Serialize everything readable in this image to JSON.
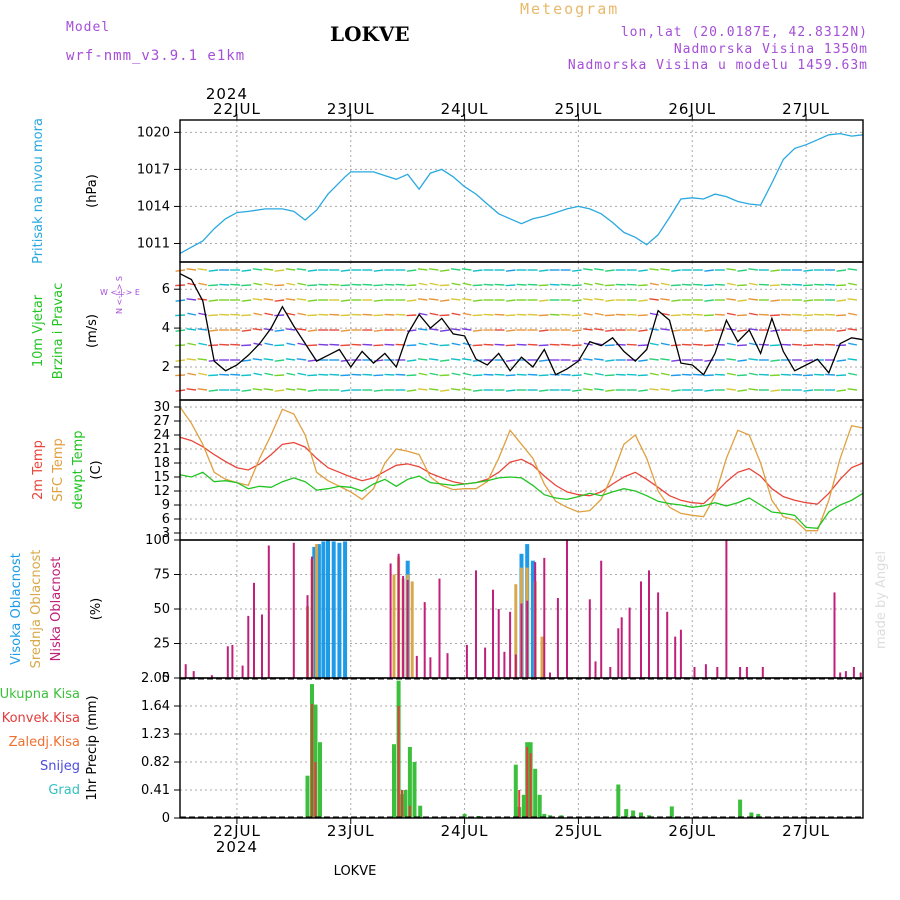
{
  "header": {
    "model_label": "Model",
    "model_name": "wrf-nmm_v3.9.1  e1km",
    "station": "LOKVE",
    "meteogram_label": "Meteogram",
    "coords": "lon,lat (20.0187E, 42.8312N)",
    "altitude": "Nadmorska Visina 1350m",
    "model_altitude": "Nadmorska Visina u modelu 1459.63m",
    "footer_station": "LOKVE",
    "watermark": "made by Angel"
  },
  "colors": {
    "pressure": "#2aa8e0",
    "temp2m": "#e8463a",
    "sfc_temp": "#e0a040",
    "dewpt": "#22c422",
    "high_cloud": "#1e9be8",
    "mid_cloud": "#d9a84a",
    "low_cloud": "#c0207a",
    "total_precip": "#3cbf3c",
    "conv_precip": "#e23c3c",
    "frozen_precip": "#f07030",
    "snow": "#4b4be0",
    "graupel": "#34c0c0"
  },
  "x_axis": {
    "year": "2024",
    "days": [
      "22JUL",
      "23JUL",
      "24JUL",
      "25JUL",
      "26JUL",
      "27JUL"
    ],
    "start_day": 21.5,
    "end_day": 27.5
  },
  "chart_data": [
    {
      "type": "line",
      "panel": "pressure",
      "ylabel_main": "Pritisak na nivou mora",
      "ylabel_unit": "(hPa)",
      "yticks": [
        "1020",
        "1017",
        "1014",
        "1011"
      ],
      "ylim": [
        1009.5,
        1021
      ],
      "grid": true,
      "series": [
        {
          "x": [
            21.5,
            21.6,
            21.7,
            21.8,
            21.9,
            22.0,
            22.1,
            22.25,
            22.4,
            22.5,
            22.6,
            22.7,
            22.8,
            22.95,
            23.0,
            23.1,
            23.2,
            23.3,
            23.4,
            23.5,
            23.6,
            23.7,
            23.8,
            23.9,
            24.0,
            24.1,
            24.2,
            24.3,
            24.4,
            24.5,
            24.6,
            24.7,
            24.8,
            24.9,
            25.0,
            25.1,
            25.2,
            25.3,
            25.4,
            25.5,
            25.6,
            25.7,
            25.8,
            25.9,
            26.0,
            26.1,
            26.2,
            26.3,
            26.4,
            26.5,
            26.6,
            26.7,
            26.8,
            26.9,
            27.0,
            27.1,
            27.2,
            27.3,
            27.4,
            27.5
          ],
          "values": [
            1010.2,
            1010.7,
            1011.2,
            1012.2,
            1013.0,
            1013.5,
            1013.6,
            1013.8,
            1013.8,
            1013.6,
            1012.9,
            1013.7,
            1015.0,
            1016.4,
            1016.8,
            1016.8,
            1016.8,
            1016.5,
            1016.2,
            1016.6,
            1015.4,
            1016.7,
            1017.0,
            1016.4,
            1015.6,
            1015.0,
            1014.2,
            1013.4,
            1013.0,
            1012.6,
            1013.0,
            1013.2,
            1013.5,
            1013.8,
            1014.0,
            1013.8,
            1013.4,
            1012.7,
            1011.9,
            1011.5,
            1010.9,
            1011.7,
            1013.1,
            1014.6,
            1014.7,
            1014.6,
            1015.0,
            1014.8,
            1014.4,
            1014.2,
            1014.1,
            1015.9,
            1017.8,
            1018.7,
            1019.0,
            1019.4,
            1019.8,
            1019.9,
            1019.7,
            1019.8
          ]
        }
      ]
    },
    {
      "type": "line",
      "panel": "wind",
      "ylabel_main": "10m Vjetar",
      "ylabel_main2": "Brzina i Pravac",
      "ylabel_unit": "(m/s)",
      "compass": "W <-|-> E",
      "compass_n": "N <-|-> S",
      "yticks": [
        "6",
        "4",
        "2"
      ],
      "ylim": [
        0.3,
        7.4
      ],
      "grid": true,
      "series": [
        {
          "name": "speed",
          "x": [
            21.5,
            21.6,
            21.7,
            21.8,
            21.9,
            22.0,
            22.1,
            22.2,
            22.3,
            22.4,
            22.5,
            22.6,
            22.7,
            22.8,
            22.9,
            23.0,
            23.1,
            23.2,
            23.3,
            23.4,
            23.5,
            23.6,
            23.7,
            23.8,
            23.9,
            24.0,
            24.1,
            24.2,
            24.3,
            24.4,
            24.5,
            24.6,
            24.7,
            24.8,
            24.9,
            25.0,
            25.1,
            25.2,
            25.3,
            25.4,
            25.5,
            25.6,
            25.7,
            25.8,
            25.9,
            26.0,
            26.1,
            26.2,
            26.3,
            26.4,
            26.5,
            26.6,
            26.7,
            26.8,
            26.9,
            27.0,
            27.1,
            27.2,
            27.3,
            27.4,
            27.5
          ],
          "values": [
            6.8,
            6.5,
            5.4,
            2.3,
            1.8,
            2.1,
            2.6,
            3.2,
            4.0,
            5.1,
            4.1,
            3.2,
            2.3,
            2.6,
            2.9,
            2.0,
            2.8,
            2.2,
            2.7,
            2.0,
            3.7,
            4.7,
            4.0,
            4.5,
            3.7,
            3.6,
            2.4,
            2.1,
            2.7,
            1.8,
            2.5,
            2.0,
            2.9,
            1.6,
            1.9,
            2.3,
            3.3,
            3.1,
            3.5,
            2.8,
            2.3,
            2.9,
            4.9,
            4.4,
            2.2,
            2.1,
            1.6,
            2.7,
            4.4,
            3.3,
            3.9,
            2.7,
            4.5,
            2.8,
            1.8,
            2.1,
            2.4,
            1.7,
            3.2,
            3.5,
            3.4
          ]
        }
      ]
    },
    {
      "type": "line",
      "panel": "temperature",
      "ylabel_main": "2m Temp",
      "ylabel_main2": "SFC Temp",
      "ylabel_main3": "dewpt Temp",
      "ylabel_unit": "(C)",
      "yticks": [
        "30",
        "27",
        "24",
        "21",
        "18",
        "15",
        "12",
        "9",
        "6",
        "3"
      ],
      "ylim": [
        1.5,
        31.5
      ],
      "grid": true,
      "series": [
        {
          "name": "2m Temp",
          "x": [
            21.5,
            21.6,
            21.7,
            21.8,
            21.9,
            22.0,
            22.1,
            22.2,
            22.3,
            22.4,
            22.5,
            22.6,
            22.7,
            22.8,
            22.9,
            23.0,
            23.1,
            23.2,
            23.3,
            23.4,
            23.5,
            23.6,
            23.7,
            23.8,
            23.9,
            24.0,
            24.1,
            24.2,
            24.3,
            24.4,
            24.5,
            24.6,
            24.7,
            24.8,
            24.9,
            25.0,
            25.1,
            25.2,
            25.3,
            25.4,
            25.5,
            25.6,
            25.7,
            25.8,
            25.9,
            26.0,
            26.1,
            26.2,
            26.3,
            26.4,
            26.5,
            26.6,
            26.7,
            26.8,
            26.9,
            27.0,
            27.1,
            27.2,
            27.3,
            27.4,
            27.5
          ],
          "values": [
            23.5,
            22.8,
            21.5,
            19.8,
            18.3,
            17.0,
            16.5,
            17.8,
            19.8,
            22.0,
            22.4,
            21.4,
            19.0,
            17.0,
            16.0,
            15.0,
            14.2,
            14.8,
            16.2,
            17.5,
            17.8,
            17.2,
            15.8,
            14.8,
            14.0,
            13.5,
            13.8,
            14.5,
            16.0,
            18.2,
            18.8,
            17.5,
            15.2,
            13.2,
            11.8,
            11.2,
            11.0,
            11.8,
            13.5,
            15.0,
            16.0,
            14.5,
            12.8,
            11.0,
            10.0,
            9.5,
            9.3,
            11.5,
            14.0,
            16.0,
            16.8,
            15.2,
            12.5,
            10.8,
            10.0,
            9.5,
            9.2,
            11.5,
            14.5,
            17.0,
            18.0
          ]
        },
        {
          "name": "SFC Temp",
          "x": [
            21.5,
            21.6,
            21.7,
            21.8,
            21.9,
            22.0,
            22.1,
            22.2,
            22.3,
            22.4,
            22.5,
            22.6,
            22.7,
            22.8,
            22.9,
            23.0,
            23.1,
            23.2,
            23.3,
            23.4,
            23.5,
            23.6,
            23.7,
            23.8,
            23.9,
            24.0,
            24.1,
            24.2,
            24.3,
            24.4,
            24.5,
            24.6,
            24.7,
            24.8,
            24.9,
            25.0,
            25.1,
            25.2,
            25.3,
            25.4,
            25.5,
            25.6,
            25.7,
            25.8,
            25.9,
            26.0,
            26.1,
            26.2,
            26.3,
            26.4,
            26.5,
            26.6,
            26.7,
            26.8,
            26.9,
            27.0,
            27.1,
            27.2,
            27.3,
            27.4,
            27.5
          ],
          "values": [
            30.0,
            26.5,
            22.0,
            16.0,
            14.5,
            13.8,
            13.2,
            19.0,
            24.0,
            29.5,
            28.5,
            24.0,
            16.0,
            14.2,
            13.0,
            11.8,
            10.2,
            12.5,
            18.0,
            21.0,
            20.5,
            19.8,
            15.0,
            13.2,
            12.3,
            12.5,
            12.5,
            14.0,
            19.0,
            25.0,
            22.0,
            19.0,
            13.5,
            9.8,
            8.5,
            7.5,
            7.8,
            10.2,
            15.5,
            22.0,
            24.0,
            19.0,
            12.0,
            8.5,
            7.2,
            6.8,
            6.5,
            11.0,
            19.0,
            25.0,
            24.0,
            18.0,
            10.0,
            6.5,
            5.8,
            3.5,
            3.5,
            10.0,
            19.0,
            26.0,
            25.5
          ]
        },
        {
          "name": "dewpt Temp",
          "x": [
            21.5,
            21.6,
            21.7,
            21.8,
            21.9,
            22.0,
            22.1,
            22.2,
            22.3,
            22.4,
            22.5,
            22.6,
            22.7,
            22.8,
            22.9,
            23.0,
            23.1,
            23.2,
            23.3,
            23.4,
            23.5,
            23.6,
            23.7,
            23.8,
            23.9,
            24.0,
            24.1,
            24.2,
            24.3,
            24.4,
            24.5,
            24.6,
            24.7,
            24.8,
            24.9,
            25.0,
            25.1,
            25.2,
            25.3,
            25.4,
            25.5,
            25.6,
            25.7,
            25.8,
            25.9,
            26.0,
            26.1,
            26.2,
            26.3,
            26.4,
            26.5,
            26.6,
            26.7,
            26.8,
            26.9,
            27.0,
            27.1,
            27.2,
            27.3,
            27.4,
            27.5
          ],
          "values": [
            15.5,
            15.0,
            16.0,
            14.0,
            14.2,
            13.8,
            12.5,
            13.0,
            12.8,
            14.0,
            14.8,
            14.0,
            12.2,
            12.5,
            13.0,
            12.8,
            12.0,
            13.5,
            14.5,
            13.0,
            14.5,
            15.2,
            13.8,
            13.5,
            13.2,
            13.5,
            13.8,
            14.2,
            14.8,
            15.0,
            14.8,
            13.2,
            11.2,
            10.5,
            10.2,
            10.8,
            11.5,
            11.0,
            11.8,
            12.5,
            12.0,
            11.0,
            9.8,
            9.3,
            9.0,
            8.5,
            8.8,
            9.5,
            8.8,
            9.5,
            10.5,
            9.0,
            7.5,
            7.2,
            6.8,
            4.2,
            4.0,
            7.5,
            9.0,
            10.0,
            11.5
          ]
        }
      ]
    },
    {
      "type": "bar",
      "panel": "cloud",
      "ylabel_main": "Visoka Oblacnost",
      "ylabel_main2": "Srednja Oblacnost",
      "ylabel_main3": "Niska Oblacnost",
      "ylabel_unit": "(%)",
      "yticks": [
        "100",
        "75",
        "50",
        "25",
        "0"
      ],
      "ylim": [
        0,
        100
      ],
      "grid": true,
      "series": [
        {
          "name": "Visoka Oblacnost",
          "x": [
            22.68,
            22.72,
            22.76,
            22.8,
            22.85,
            22.9,
            22.95,
            23.5,
            24.5,
            24.55,
            24.6
          ],
          "values": [
            95,
            97,
            99,
            100,
            99,
            98,
            99,
            85,
            90,
            97,
            85
          ]
        },
        {
          "name": "Srednja Oblacnost",
          "x": [
            22.62,
            22.66,
            22.7,
            23.38,
            23.42,
            23.46,
            23.5,
            23.54,
            24.45,
            24.5,
            24.55,
            24.62,
            24.68
          ],
          "values": [
            52,
            86,
            97,
            75,
            88,
            72,
            75,
            70,
            68,
            80,
            80,
            70,
            30
          ]
        },
        {
          "name": "Niska Oblacnost",
          "x": [
            21.55,
            21.62,
            21.78,
            21.92,
            21.96,
            22.05,
            22.1,
            22.15,
            22.22,
            22.28,
            22.5,
            22.62,
            22.66,
            23.35,
            23.42,
            23.46,
            23.5,
            23.58,
            23.65,
            23.7,
            23.78,
            23.85,
            24.02,
            24.1,
            24.18,
            24.25,
            24.3,
            24.35,
            24.4,
            24.45,
            24.5,
            24.55,
            24.62,
            24.7,
            24.75,
            24.82,
            24.9,
            25.1,
            25.15,
            25.2,
            25.28,
            25.35,
            25.38,
            25.45,
            25.55,
            25.62,
            25.7,
            25.78,
            25.85,
            25.9,
            26.02,
            26.12,
            26.22,
            26.3,
            26.42,
            26.48,
            26.62,
            27.25,
            27.3,
            27.35,
            27.42,
            27.48
          ],
          "values": [
            10,
            5,
            2,
            23,
            24,
            9,
            45,
            69,
            46,
            96,
            98,
            60,
            88,
            83,
            90,
            74,
            71,
            16,
            55,
            15,
            72,
            18,
            24,
            78,
            22,
            64,
            50,
            19,
            48,
            17,
            54,
            56,
            84,
            87,
            4,
            58,
            100,
            57,
            12,
            85,
            8,
            36,
            44,
            51,
            70,
            78,
            62,
            48,
            30,
            35,
            8,
            10,
            8,
            100,
            8,
            8,
            8,
            62,
            4,
            5,
            8,
            4
          ]
        }
      ]
    },
    {
      "type": "bar",
      "panel": "precip",
      "ylabel_main": "1hr Precip",
      "ylabel_unit": "(mm)",
      "legend": [
        "Ukupna Kisa",
        "Konvek.Kisa",
        "Zaledj.Kisa",
        "Snijeg",
        "Grad"
      ],
      "yticks": [
        "2.05",
        "1.64",
        "1.23",
        "0.82",
        "0.41",
        "0"
      ],
      "ylim": [
        0,
        2.05
      ],
      "grid": true,
      "series": [
        {
          "name": "Ukupna Kisa",
          "x": [
            22.62,
            22.66,
            22.69,
            22.73,
            23.38,
            23.42,
            23.45,
            23.48,
            23.52,
            23.56,
            23.61,
            24.0,
            24.12,
            24.45,
            24.48,
            24.52,
            24.55,
            24.58,
            24.62,
            24.66,
            24.7,
            24.75,
            24.85,
            25.35,
            25.42,
            25.48,
            25.55,
            25.62,
            25.82,
            26.42,
            26.52,
            26.58
          ],
          "values": [
            0.62,
            1.96,
            1.66,
            1.11,
            1.08,
            2.01,
            0.35,
            0.41,
            1.04,
            0.82,
            0.18,
            0.06,
            0.03,
            0.78,
            0.16,
            0.34,
            1.11,
            1.11,
            0.72,
            0.34,
            0.06,
            0.04,
            0.04,
            0.49,
            0.13,
            0.11,
            0.08,
            0.04,
            0.17,
            0.27,
            0.08,
            0.06
          ]
        },
        {
          "name": "Konvek.Kisa",
          "x": [
            22.66,
            22.69,
            23.42,
            23.45,
            23.52,
            24.48,
            24.55,
            24.58
          ],
          "values": [
            1.67,
            0.82,
            1.64,
            0.41,
            0.18,
            0.41,
            1.04,
            0.95
          ]
        }
      ]
    }
  ]
}
